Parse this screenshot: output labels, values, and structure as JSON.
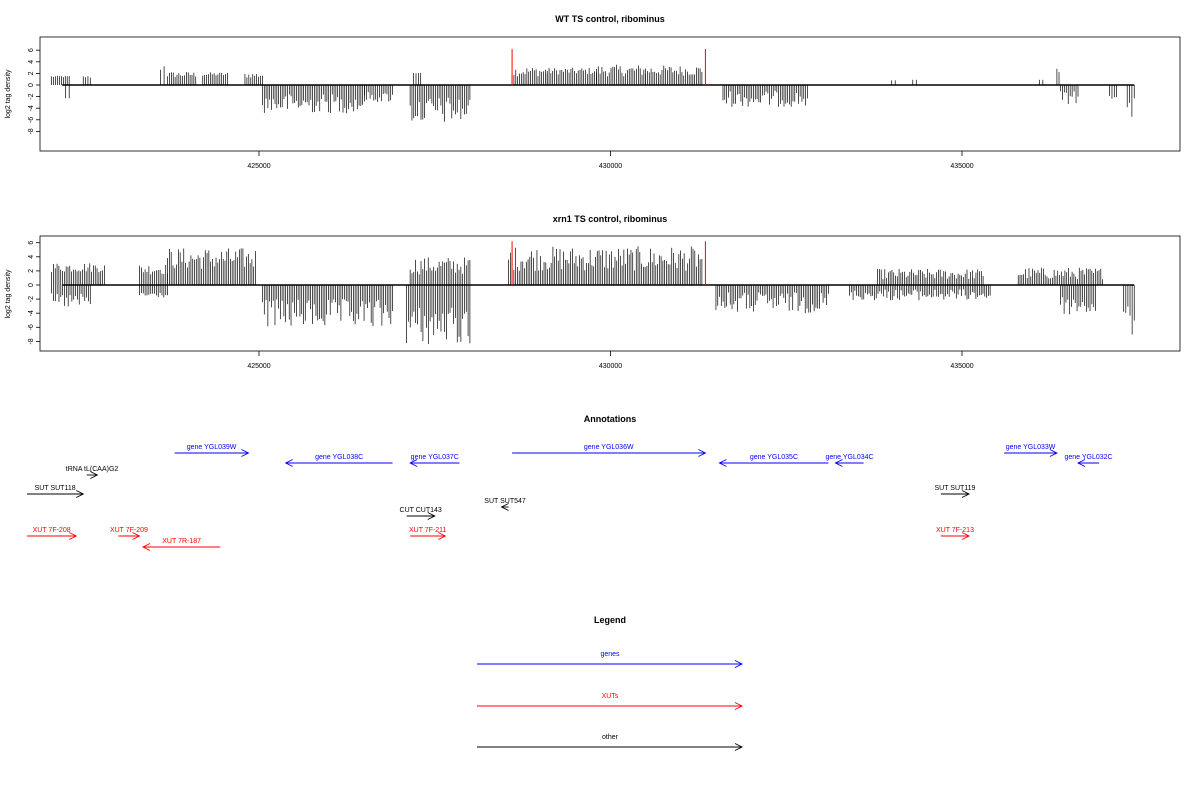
{
  "chart_data": [
    {
      "type": "bar",
      "title": "WT TS control, ribominus",
      "ylabel": "log2 tag density",
      "xlabel": "",
      "xlim": [
        422000,
        438500
      ],
      "ylim": [
        -9,
        6.5
      ],
      "yticks": [
        6,
        4,
        2,
        0,
        -2,
        -4,
        -6,
        -8
      ],
      "xticks": [
        425000,
        430000,
        435000
      ],
      "xtick_labels": [
        "425000",
        "430000",
        "435000"
      ],
      "plus_strand": [
        {
          "x": [
            422050,
            422300
          ],
          "y": [
            1.3,
            1.6
          ]
        },
        {
          "x": [
            422500,
            422600
          ],
          "y": [
            1.2,
            1.6
          ]
        },
        {
          "x": [
            423600,
            423650
          ],
          "y": [
            3.6,
            1.9
          ]
        },
        {
          "x": [
            423700,
            424100
          ],
          "y": [
            1.3,
            2.3
          ]
        },
        {
          "x": [
            424200,
            424550
          ],
          "y": [
            1.5,
            2.2
          ]
        },
        {
          "x": [
            424800,
            425050
          ],
          "y": [
            1.2,
            2.2
          ]
        },
        {
          "x": [
            427200,
            427300
          ],
          "y": [
            2.1,
            2.0
          ]
        },
        {
          "x": [
            428600,
            429100
          ],
          "y": [
            1.5,
            3.2
          ]
        },
        {
          "x": [
            429100,
            429800
          ],
          "y": [
            1.8,
            3.0
          ]
        },
        {
          "x": [
            429800,
            430500
          ],
          "y": [
            1.5,
            3.5
          ]
        },
        {
          "x": [
            430500,
            431300
          ],
          "y": [
            1.6,
            3.4
          ]
        },
        {
          "x": [
            434000,
            434050
          ],
          "y": [
            0.8,
            0.8
          ]
        },
        {
          "x": [
            434300,
            434350
          ],
          "y": [
            0.9,
            0.9
          ]
        },
        {
          "x": [
            436100,
            436150
          ],
          "y": [
            0.9,
            0.9
          ]
        },
        {
          "x": [
            436350,
            436380
          ],
          "y": [
            3.1,
            2.2
          ]
        }
      ],
      "minus_strand": [
        {
          "x": [
            422250,
            422300
          ],
          "y": [
            -2.3,
            -2.3
          ]
        },
        {
          "x": [
            425050,
            426500
          ],
          "y": [
            -1.5,
            -4.9
          ]
        },
        {
          "x": [
            426500,
            426900
          ],
          "y": [
            -1.2,
            -3.0
          ]
        },
        {
          "x": [
            427150,
            428000
          ],
          "y": [
            -2.0,
            -6.8
          ]
        },
        {
          "x": [
            431600,
            432800
          ],
          "y": [
            -1.0,
            -3.8
          ]
        },
        {
          "x": [
            436400,
            436650
          ],
          "y": [
            -1.0,
            -3.3
          ]
        },
        {
          "x": [
            437100,
            437200
          ],
          "y": [
            -1.0,
            -2.4
          ]
        },
        {
          "x": [
            437350,
            437450
          ],
          "y": [
            -2.0,
            -6.8
          ]
        }
      ],
      "red_markers": [
        428600,
        431350
      ]
    },
    {
      "type": "bar",
      "title": "xrn1 TS control, ribominus",
      "ylabel": "log2 tag density",
      "xlabel": "",
      "xlim": [
        422000,
        438500
      ],
      "ylim": [
        -9,
        6.5
      ],
      "yticks": [
        6,
        4,
        2,
        0,
        -2,
        -4,
        -6,
        -8
      ],
      "xticks": [
        425000,
        430000,
        435000
      ],
      "xtick_labels": [
        "425000",
        "430000",
        "435000"
      ],
      "plus_strand": [
        {
          "x": [
            422050,
            422800
          ],
          "y": [
            1.8,
            3.2
          ]
        },
        {
          "x": [
            423300,
            423700
          ],
          "y": [
            1.5,
            3.0
          ]
        },
        {
          "x": [
            423700,
            424950
          ],
          "y": [
            2.2,
            5.3
          ]
        },
        {
          "x": [
            427150,
            428000
          ],
          "y": [
            1.5,
            4.0
          ]
        },
        {
          "x": [
            428550,
            431300
          ],
          "y": [
            2.0,
            5.5
          ]
        },
        {
          "x": [
            433800,
            435300
          ],
          "y": [
            0.8,
            2.3
          ]
        },
        {
          "x": [
            435800,
            437000
          ],
          "y": [
            0.8,
            2.5
          ]
        }
      ],
      "minus_strand": [
        {
          "x": [
            422050,
            422600
          ],
          "y": [
            -1.2,
            -3.4
          ]
        },
        {
          "x": [
            423300,
            423700
          ],
          "y": [
            -1.0,
            -1.8
          ]
        },
        {
          "x": [
            425050,
            426900
          ],
          "y": [
            -2.0,
            -6.2
          ]
        },
        {
          "x": [
            427100,
            428000
          ],
          "y": [
            -3.0,
            -8.5
          ]
        },
        {
          "x": [
            431500,
            433100
          ],
          "y": [
            -1.0,
            -4.0
          ]
        },
        {
          "x": [
            433400,
            435400
          ],
          "y": [
            -0.6,
            -2.2
          ]
        },
        {
          "x": [
            436400,
            436900
          ],
          "y": [
            -1.5,
            -4.3
          ]
        },
        {
          "x": [
            437300,
            437450
          ],
          "y": [
            -2.5,
            -7.5
          ]
        }
      ],
      "red_markers": [
        428600,
        431350
      ]
    }
  ],
  "annotations": {
    "title": "Annotations",
    "features": [
      {
        "label": "gene YGL039W",
        "category": "gene",
        "start": 423800,
        "end": 424850,
        "dir": "right",
        "row": 0
      },
      {
        "label": "gene YGL038C",
        "category": "gene",
        "start": 425380,
        "end": 426900,
        "dir": "left",
        "row": 1
      },
      {
        "label": "gene YGL037C",
        "category": "gene",
        "start": 427150,
        "end": 427850,
        "dir": "left",
        "row": 1
      },
      {
        "label": "gene YGL036W",
        "category": "gene",
        "start": 428600,
        "end": 431350,
        "dir": "right",
        "row": 0
      },
      {
        "label": "gene YGL035C",
        "category": "gene",
        "start": 431550,
        "end": 433100,
        "dir": "left",
        "row": 1
      },
      {
        "label": "gene YGL034C",
        "category": "gene",
        "start": 433200,
        "end": 433600,
        "dir": "left",
        "row": 1
      },
      {
        "label": "gene YGL033W",
        "category": "gene",
        "start": 435600,
        "end": 436350,
        "dir": "right",
        "row": 0
      },
      {
        "label": "gene YGL032C",
        "category": "gene",
        "start": 436650,
        "end": 436950,
        "dir": "left",
        "row": 1
      },
      {
        "label": "tRNA tL(CAA)G2",
        "category": "other",
        "start": 422550,
        "end": 422700,
        "dir": "right",
        "row": 2
      },
      {
        "label": "SUT SUT118",
        "category": "other",
        "start": 421700,
        "end": 422500,
        "dir": "right",
        "row": 3
      },
      {
        "label": "SUT SUT119",
        "category": "other",
        "start": 434700,
        "end": 435100,
        "dir": "right",
        "row": 3
      },
      {
        "label": "SUT SUT547",
        "category": "other",
        "start": 428450,
        "end": 428550,
        "dir": "left",
        "row": 4
      },
      {
        "label": "CUT CUT143",
        "category": "other",
        "start": 427100,
        "end": 427500,
        "dir": "right",
        "row": 5
      },
      {
        "label": "XUT 7F-208",
        "category": "XUT",
        "start": 421700,
        "end": 422400,
        "dir": "right",
        "row": 6
      },
      {
        "label": "XUT 7F-209",
        "category": "XUT",
        "start": 423000,
        "end": 423300,
        "dir": "right",
        "row": 6
      },
      {
        "label": "XUT 7R-187",
        "category": "XUT",
        "start": 423350,
        "end": 424450,
        "dir": "left",
        "row": 7
      },
      {
        "label": "XUT 7F-211",
        "category": "XUT",
        "start": 427150,
        "end": 427650,
        "dir": "right",
        "row": 6
      },
      {
        "label": "XUT 7F-213",
        "category": "XUT",
        "start": 434700,
        "end": 435100,
        "dir": "right",
        "row": 6
      }
    ]
  },
  "legend": {
    "title": "Legend",
    "items": [
      {
        "label": "genes",
        "category": "gene"
      },
      {
        "label": "XUTs",
        "category": "XUT"
      },
      {
        "label": "other",
        "category": "other"
      }
    ]
  },
  "colors": {
    "gene": "#0000ff",
    "XUT": "#ff0000",
    "other": "#000000",
    "marker": "#ff0000",
    "axis": "#000000"
  }
}
